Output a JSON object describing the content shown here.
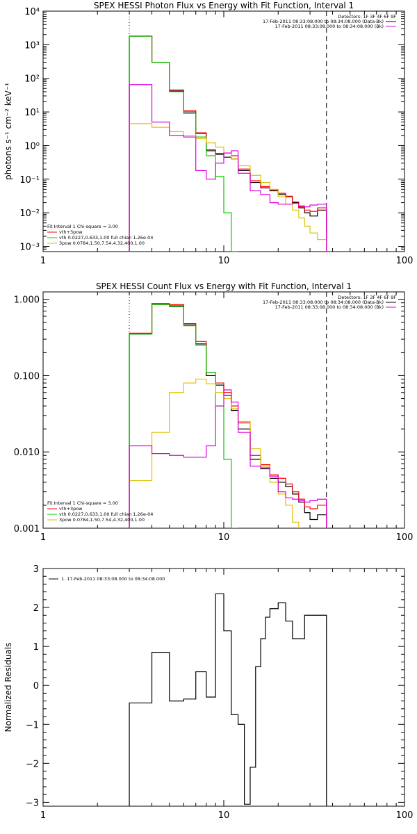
{
  "chart_data": [
    {
      "type": "line",
      "title": "SPEX HESSI Photon Flux vs Energy with Fit Function, Interval 1",
      "ylabel": "photons s⁻¹ cm⁻² keV⁻¹",
      "xlim": [
        1,
        100
      ],
      "ylim": [
        0.0007,
        10000
      ],
      "xscale": "log",
      "yscale": "log",
      "x_ticks": [
        "1",
        "10",
        "100"
      ],
      "y_ticks": [
        "10⁻³",
        "10⁻²",
        "10⁻¹",
        "10⁰",
        "10¹",
        "10²",
        "10³",
        "10⁴"
      ],
      "vlines": [
        {
          "x": 3,
          "style": "dotted"
        },
        {
          "x": 37,
          "style": "dashed"
        }
      ],
      "info": [
        "Detectors: 1F 3F 4F 6F 9F",
        "17-Feb-2011 08:33:08.000 to 08:34:08.000 (Data-Bk)",
        "17-Feb-2011 08:33:08.000 to 08:34:08.000 (Bk)"
      ],
      "legend": [
        "Fit Interval 1   Chi-square = 3.00",
        "vth+3pow",
        "vth 0.0227,0.633,1.00  full chian 1.26e-04",
        "3pow 0.0784,1.50,7.54,4.32,400,1.00"
      ],
      "bin_edges": [
        3,
        4,
        5,
        6,
        7,
        8,
        9,
        10,
        11,
        12,
        14,
        16,
        18,
        20,
        22,
        24,
        26,
        28,
        30,
        33,
        37
      ],
      "series": [
        {
          "color": "#000000",
          "values": [
            1800,
            300,
            42,
            10,
            2.3,
            0.7,
            0.55,
            0.45,
            0.4,
            0.18,
            0.08,
            0.055,
            0.045,
            0.035,
            0.03,
            0.02,
            0.014,
            0.01,
            0.008,
            0.012
          ]
        },
        {
          "color": "#ff0000",
          "values": [
            1800,
            300,
            45,
            11,
            2.4,
            0.75,
            0.58,
            0.6,
            0.5,
            0.2,
            0.09,
            0.06,
            0.048,
            0.038,
            0.031,
            0.021,
            0.015,
            0.012,
            0.011,
            0.014
          ]
        },
        {
          "color": "#00cc00",
          "values": [
            1800,
            300,
            40,
            9,
            1.8,
            0.5,
            0.12,
            0.01,
            0.0007,
            0.0005,
            0.0005,
            0.0005,
            0.0005,
            0.0005,
            0.0005,
            0.0005,
            0.0005,
            0.0005,
            0.0005,
            0.0005
          ]
        },
        {
          "color": "#e0c000",
          "values": [
            4.5,
            3.5,
            2.6,
            2,
            1.6,
            1.2,
            0.9,
            0.6,
            0.4,
            0.25,
            0.13,
            0.08,
            0.05,
            0.03,
            0.018,
            0.012,
            0.007,
            0.004,
            0.0025,
            0.0016
          ]
        },
        {
          "color": "#e000e0",
          "values": [
            65,
            5,
            2,
            1.8,
            0.18,
            0.1,
            0.3,
            0.6,
            0.7,
            0.15,
            0.045,
            0.035,
            0.02,
            0.018,
            0.018,
            0.019,
            0.016,
            0.015,
            0.017,
            0.018
          ]
        }
      ]
    },
    {
      "type": "line",
      "title": "SPEX HESSI Count Flux vs Energy with Fit Function, Interval 1",
      "ylabel": "",
      "xlim": [
        1,
        100
      ],
      "ylim": [
        0.001,
        1.25
      ],
      "xscale": "log",
      "yscale": "log",
      "x_ticks": [
        "1",
        "10",
        "100"
      ],
      "y_ticks": [
        "0.001",
        "0.010",
        "0.100",
        "1.000"
      ],
      "vlines": [
        {
          "x": 3,
          "style": "dotted"
        },
        {
          "x": 37,
          "style": "dashed"
        }
      ],
      "info": [
        "Detectors: 1F 3F 4F 6F 9F",
        "17-Feb-2011 08:33:08.000 to 08:34:08.000 (Data-Bk)",
        "17-Feb-2011 08:33:08.000 to 08:34:08.000 (Bk)"
      ],
      "legend": [
        "Fit Interval 1   Chi-square = 3.00",
        "vth+3pow",
        "vth 0.0227,0.633,1.00  full chian 1.26e-04",
        "3pow 0.0784,1.50,7.54,4.32,400,1.00"
      ],
      "bin_edges": [
        3,
        4,
        5,
        6,
        7,
        8,
        9,
        10,
        11,
        12,
        14,
        16,
        18,
        20,
        22,
        24,
        26,
        28,
        30,
        33,
        37
      ],
      "series": [
        {
          "color": "#000000",
          "values": [
            0.35,
            0.85,
            0.82,
            0.46,
            0.26,
            0.1,
            0.075,
            0.055,
            0.035,
            0.02,
            0.008,
            0.006,
            0.0045,
            0.004,
            0.0035,
            0.0028,
            0.0022,
            0.0016,
            0.0013,
            0.0015
          ]
        },
        {
          "color": "#ff0000",
          "values": [
            0.36,
            0.88,
            0.85,
            0.48,
            0.28,
            0.11,
            0.08,
            0.06,
            0.04,
            0.024,
            0.009,
            0.0068,
            0.005,
            0.0045,
            0.0038,
            0.003,
            0.0024,
            0.0019,
            0.0018,
            0.002
          ]
        },
        {
          "color": "#00cc00",
          "values": [
            0.35,
            0.85,
            0.8,
            0.45,
            0.25,
            0.11,
            0.04,
            0.008,
            0.001,
            0.0008,
            0.0008,
            0.0008,
            0.0008,
            0.0008,
            0.0008,
            0.0008,
            0.0008,
            0.0008,
            0.0008,
            0.0008
          ]
        },
        {
          "color": "#e0c000",
          "values": [
            0.0042,
            0.018,
            0.06,
            0.08,
            0.09,
            0.078,
            0.06,
            0.05,
            0.037,
            0.025,
            0.011,
            0.0065,
            0.004,
            0.0028,
            0.002,
            0.0012,
            0.0008,
            0.0008,
            0.0008,
            0.0008
          ]
        },
        {
          "color": "#e000e0",
          "values": [
            0.012,
            0.0095,
            0.009,
            0.0085,
            0.0085,
            0.012,
            0.04,
            0.065,
            0.045,
            0.018,
            0.0065,
            0.0062,
            0.0048,
            0.003,
            0.0025,
            0.0024,
            0.0023,
            0.0022,
            0.0023,
            0.0024
          ]
        }
      ]
    },
    {
      "type": "line",
      "title": "",
      "ylabel": "Normalized Residuals",
      "xlim": [
        1,
        100
      ],
      "ylim": [
        -3.1,
        3
      ],
      "xscale": "log",
      "yscale": "linear",
      "x_ticks": [
        "1",
        "10",
        "100"
      ],
      "y_ticks": [
        "−3",
        "−2",
        "−1",
        "0",
        "1",
        "2",
        "3"
      ],
      "legend": [
        "1. 17-Feb-2011 08:33:08.000 to 08:34:08.000"
      ],
      "bin_edges": [
        3,
        4,
        5,
        6,
        7,
        8,
        9,
        10,
        11,
        12,
        13,
        14,
        15,
        16,
        17,
        18,
        20,
        22,
        24,
        26,
        28,
        30,
        33,
        37
      ],
      "series": [
        {
          "color": "#000000",
          "values": [
            -0.45,
            0.85,
            -0.4,
            -0.35,
            0.35,
            -0.3,
            2.35,
            1.4,
            -0.75,
            -1.0,
            -3.05,
            -2.1,
            0.48,
            1.2,
            1.75,
            1.97,
            2.12,
            1.65,
            1.2,
            1.2,
            1.8,
            1.8,
            1.8
          ]
        }
      ]
    }
  ]
}
